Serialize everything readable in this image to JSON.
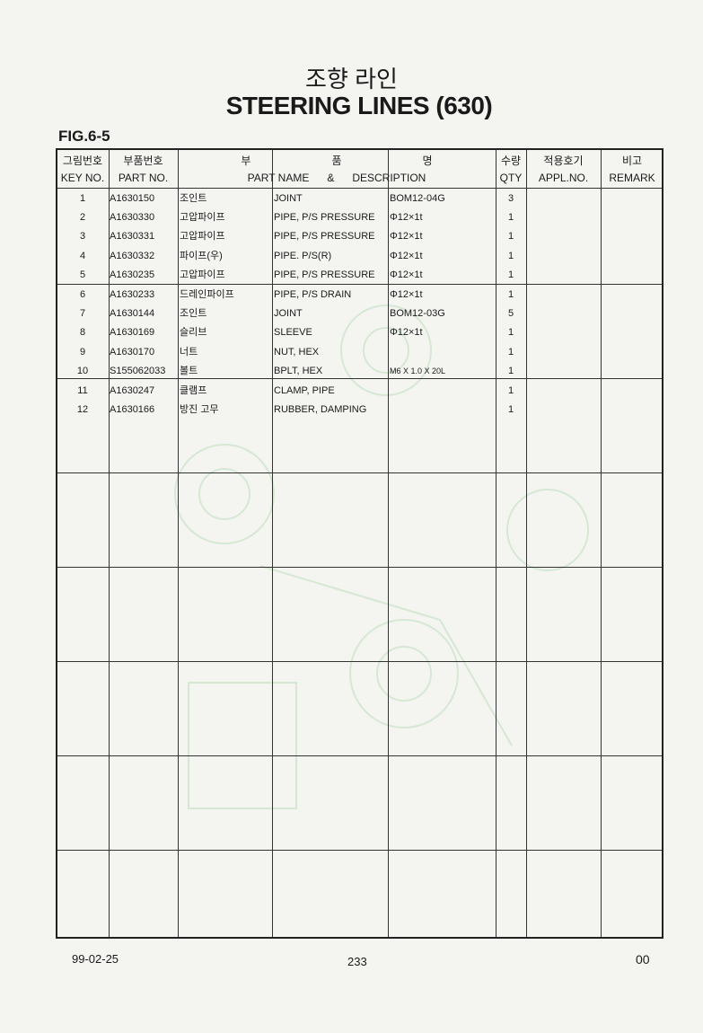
{
  "title_ko": "조향 라인",
  "title_en": "STEERING LINES (630)",
  "figure": "FIG.6-5",
  "header": {
    "key_ko": "그림번호",
    "key_en": "KEY NO.",
    "part_ko": "부품번호",
    "part_en": "PART NO.",
    "name_ko": [
      "부",
      "품",
      "명"
    ],
    "name_en": "PART NAME",
    "amp": "&",
    "desc_en": "DESCRIPTION",
    "qty_ko": "수량",
    "qty_en": "QTY",
    "appl_ko": "적용호기",
    "appl_en": "APPL.NO.",
    "remark_ko": "비고",
    "remark_en": "REMARK"
  },
  "rows": [
    {
      "key": "1",
      "part": "A1630150",
      "name_ko": "조인트",
      "name_en": "JOINT",
      "desc": "BOM12-04G",
      "qty": "3"
    },
    {
      "key": "2",
      "part": "A1630330",
      "name_ko": "고압파이프",
      "name_en": "PIPE, P/S PRESSURE",
      "desc": "Φ12×1t",
      "qty": "1"
    },
    {
      "key": "3",
      "part": "A1630331",
      "name_ko": "고압파이프",
      "name_en": "PIPE, P/S PRESSURE",
      "desc": "Φ12×1t",
      "qty": "1"
    },
    {
      "key": "4",
      "part": "A1630332",
      "name_ko": "파이프(우)",
      "name_en": "PIPE. P/S(R)",
      "desc": "Φ12×1t",
      "qty": "1"
    },
    {
      "key": "5",
      "part": "A1630235",
      "name_ko": "고압파이프",
      "name_en": "PIPE, P/S PRESSURE",
      "desc": "Φ12×1t",
      "qty": "1"
    },
    {
      "key": "6",
      "part": "A1630233",
      "name_ko": "드레인파이프",
      "name_en": "PIPE, P/S DRAIN",
      "desc": "Φ12×1t",
      "qty": "1"
    },
    {
      "key": "7",
      "part": "A1630144",
      "name_ko": "조인트",
      "name_en": "JOINT",
      "desc": "BOM12-03G",
      "qty": "5"
    },
    {
      "key": "8",
      "part": "A1630169",
      "name_ko": "슬리브",
      "name_en": "SLEEVE",
      "desc": "Φ12×1t",
      "qty": "1"
    },
    {
      "key": "9",
      "part": "A1630170",
      "name_ko": "너트",
      "name_en": "NUT, HEX",
      "desc": "",
      "qty": "1"
    },
    {
      "key": "10",
      "part": "S155062033",
      "name_ko": "볼트",
      "name_en": "BPLT, HEX",
      "desc": "M6 X 1.0 X 20L",
      "qty": "1"
    },
    {
      "key": "11",
      "part": "A1630247",
      "name_ko": "클램프",
      "name_en": "CLAMP, PIPE",
      "desc": "",
      "qty": "1"
    },
    {
      "key": "12",
      "part": "A1630166",
      "name_ko": "방진 고무",
      "name_en": "RUBBER, DAMPING",
      "desc": "",
      "qty": "1"
    }
  ],
  "footer": {
    "date": "99-02-25",
    "page": "233",
    "revision": "00"
  }
}
